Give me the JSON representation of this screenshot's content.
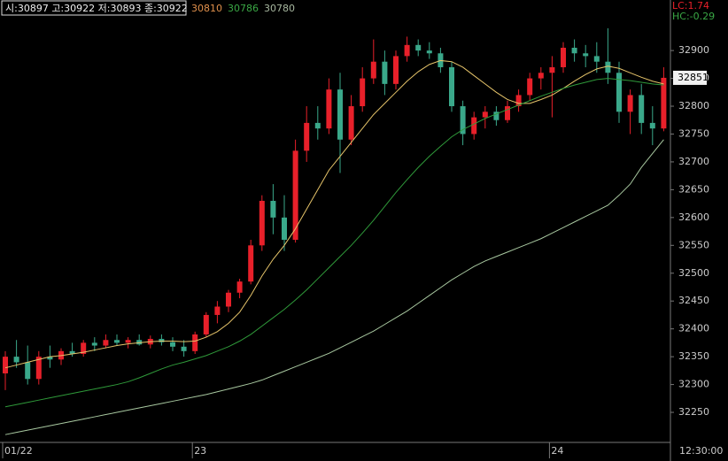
{
  "chart_data": {
    "type": "candlestick",
    "ohlc_label": "시:30897 고:30922 저:30893 종:30922",
    "lc_label": "LC:1.74",
    "hc_label": "HC:-0.29",
    "time_label": "12:30:00",
    "up_color": "#e8202a",
    "down_color": "#3aa88a",
    "categories": [
      "01/22",
      null,
      null,
      null,
      null,
      null,
      null,
      null,
      null,
      null,
      null,
      null,
      null,
      null,
      null,
      null,
      null,
      "23",
      null,
      null,
      null,
      null,
      null,
      null,
      null,
      null,
      null,
      null,
      null,
      null,
      null,
      null,
      null,
      null,
      null,
      null,
      null,
      null,
      null,
      null,
      null,
      null,
      null,
      null,
      null,
      null,
      null,
      null,
      null,
      "24",
      null,
      null,
      null,
      null,
      null,
      null,
      null,
      null,
      null,
      null
    ],
    "open": [
      32320,
      32350,
      32340,
      32310,
      32350,
      32345,
      32360,
      32355,
      32375,
      32370,
      32380,
      32375,
      32380,
      32372,
      32382,
      32376,
      32368,
      32360,
      32390,
      32425,
      32440,
      32465,
      32485,
      32550,
      32630,
      32600,
      32560,
      32720,
      32770,
      32760,
      32830,
      32740,
      32800,
      32850,
      32880,
      32840,
      32890,
      32910,
      32900,
      32895,
      32870,
      32800,
      32750,
      32780,
      32790,
      32775,
      32800,
      32820,
      32850,
      32860,
      32870,
      32905,
      32895,
      32890,
      32880,
      32860,
      32790,
      32820,
      32770,
      32760
    ],
    "high": [
      32360,
      32380,
      32370,
      32360,
      32370,
      32365,
      32375,
      32380,
      32385,
      32390,
      32390,
      32385,
      32390,
      32388,
      32390,
      32385,
      32380,
      32395,
      32430,
      32450,
      32470,
      32490,
      32560,
      32640,
      32660,
      32640,
      32740,
      32800,
      32800,
      32850,
      32860,
      32820,
      32870,
      32920,
      32900,
      32900,
      32925,
      32920,
      32915,
      32905,
      32880,
      32810,
      32790,
      32800,
      32800,
      32810,
      32830,
      32860,
      32870,
      32890,
      32915,
      32920,
      32910,
      32915,
      32940,
      32880,
      32830,
      32840,
      32800,
      32870
    ],
    "low": [
      32290,
      32330,
      32300,
      32300,
      32330,
      32335,
      32350,
      32350,
      32360,
      32365,
      32370,
      32365,
      32370,
      32365,
      32370,
      32360,
      32350,
      32355,
      32385,
      32410,
      32430,
      32455,
      32480,
      32540,
      32570,
      32540,
      32555,
      32700,
      32740,
      32750,
      32680,
      32730,
      32790,
      32840,
      32820,
      32830,
      32880,
      32890,
      32885,
      32860,
      32790,
      32730,
      32740,
      32760,
      32765,
      32770,
      32790,
      32810,
      32830,
      32780,
      32860,
      32880,
      32870,
      32860,
      32840,
      32770,
      32750,
      32750,
      32730,
      32755
    ],
    "close": [
      32350,
      32340,
      32310,
      32350,
      32345,
      32360,
      32355,
      32375,
      32370,
      32380,
      32375,
      32380,
      32372,
      32382,
      32376,
      32368,
      32360,
      32390,
      32425,
      32440,
      32465,
      32485,
      32550,
      32630,
      32600,
      32560,
      32720,
      32770,
      32760,
      32830,
      32740,
      32800,
      32850,
      32880,
      32840,
      32890,
      32910,
      32900,
      32895,
      32870,
      32800,
      32750,
      32780,
      32790,
      32775,
      32800,
      32820,
      32850,
      32860,
      32870,
      32905,
      32895,
      32890,
      32880,
      32860,
      32790,
      32820,
      32770,
      32760,
      32851
    ],
    "series": [
      {
        "name": "30810",
        "color": "#e6c46a",
        "label_color": "#e0904c",
        "values": [
          32330,
          32335,
          32340,
          32345,
          32350,
          32352,
          32355,
          32358,
          32362,
          32366,
          32370,
          32373,
          32375,
          32377,
          32378,
          32378,
          32377,
          32378,
          32385,
          32395,
          32410,
          32430,
          32460,
          32495,
          32525,
          32550,
          32580,
          32615,
          32650,
          32685,
          32710,
          32735,
          32760,
          32785,
          32805,
          32825,
          32845,
          32862,
          32875,
          32882,
          32880,
          32870,
          32855,
          32840,
          32825,
          32812,
          32805,
          32805,
          32812,
          32820,
          32832,
          32845,
          32857,
          32867,
          32872,
          32868,
          32860,
          32852,
          32845,
          32840
        ]
      },
      {
        "name": "30786",
        "color": "#2f9a3a",
        "label_color": "#3aa845",
        "values": [
          32260,
          32264,
          32268,
          32272,
          32276,
          32280,
          32284,
          32288,
          32292,
          32296,
          32300,
          32305,
          32312,
          32320,
          32328,
          32335,
          32340,
          32346,
          32352,
          32360,
          32368,
          32378,
          32390,
          32405,
          32420,
          32435,
          32452,
          32470,
          32490,
          32510,
          32530,
          32550,
          32572,
          32595,
          32620,
          32645,
          32668,
          32690,
          32710,
          32728,
          32745,
          32758,
          32768,
          32778,
          32786,
          32794,
          32802,
          32810,
          32818,
          32825,
          32832,
          32838,
          32843,
          32848,
          32850,
          32848,
          32846,
          32843,
          32840,
          32838
        ]
      },
      {
        "name": "30780",
        "color": "#a8c8a0",
        "label_color": "#a8b8a0",
        "values": [
          32210,
          32214,
          32218,
          32222,
          32226,
          32230,
          32234,
          32238,
          32242,
          32246,
          32250,
          32254,
          32258,
          32262,
          32266,
          32270,
          32274,
          32278,
          32282,
          32287,
          32292,
          32297,
          32302,
          32308,
          32316,
          32324,
          32332,
          32340,
          32348,
          32356,
          32366,
          32376,
          32386,
          32396,
          32408,
          32420,
          32432,
          32446,
          32460,
          32474,
          32488,
          32500,
          32512,
          32522,
          32530,
          32538,
          32546,
          32554,
          32562,
          32572,
          32582,
          32592,
          32602,
          32612,
          32622,
          32640,
          32660,
          32690,
          32715,
          32740
        ]
      }
    ],
    "ylim": [
      32196,
      32959
    ],
    "yticks": [
      32250,
      32300,
      32350,
      32400,
      32450,
      32500,
      32550,
      32600,
      32650,
      32700,
      32750,
      32800,
      32850,
      32900
    ]
  }
}
